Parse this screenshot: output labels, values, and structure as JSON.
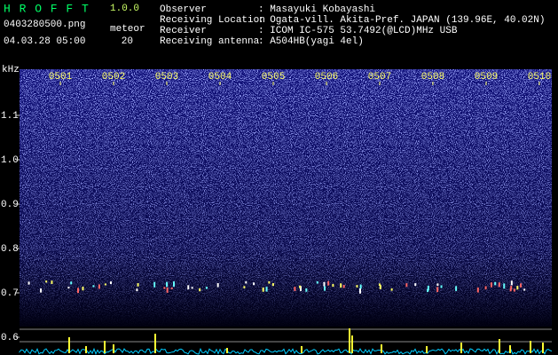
{
  "header": {
    "app_name": "H R O F F T",
    "version": "1.0.0",
    "file": "0403280500.png",
    "meteor_label": "meteor",
    "datetime": "04.03.28 05:00",
    "meteor_count": 20,
    "info": [
      {
        "label": "Observer",
        "value": ": Masayuki Kobayashi"
      },
      {
        "label": "Receiving Location",
        "value": ": Ogata-vill. Akita-Pref. JAPAN (139.96E, 40.02N)"
      },
      {
        "label": "Receiver",
        "value": ": ICOM IC-575 53.7492(@LCD)MHz USB"
      },
      {
        "label": "Receiving antenna",
        "value": ": A504HB(yagi 4el)"
      }
    ]
  },
  "y_axis": {
    "unit": "kHz",
    "ticks": [
      "1.1",
      "1.0",
      "0.9",
      "0.8",
      "0.7",
      "0.6"
    ]
  },
  "time_labels": [
    "0501",
    "0502",
    "0503",
    "0504",
    "0505",
    "0506",
    "0507",
    "0508",
    "0509",
    "0510"
  ]
}
